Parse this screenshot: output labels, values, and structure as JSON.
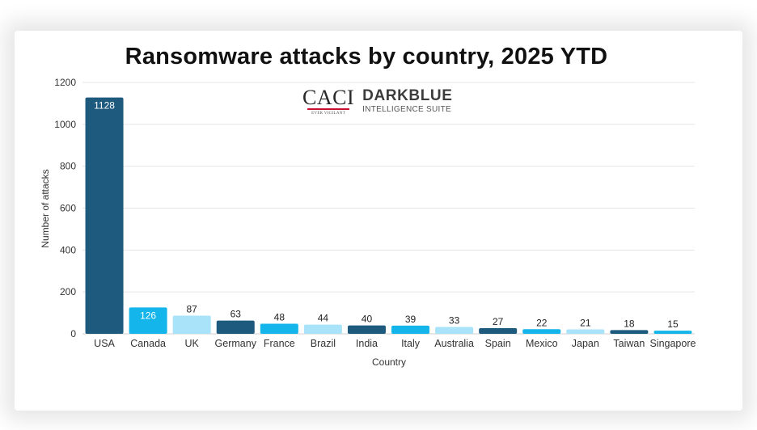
{
  "chart_data": {
    "type": "bar",
    "title": "Ransomware attacks by country, 2025 YTD",
    "xlabel": "Country",
    "ylabel": "Number of attacks",
    "ylim": [
      0,
      1200
    ],
    "yticks": [
      0,
      200,
      400,
      600,
      800,
      1000,
      1200
    ],
    "grid": true,
    "categories": [
      "USA",
      "Canada",
      "UK",
      "Germany",
      "France",
      "Brazil",
      "India",
      "Italy",
      "Australia",
      "Spain",
      "Mexico",
      "Japan",
      "Taiwan",
      "Singapore"
    ],
    "values": [
      1128,
      126,
      87,
      63,
      48,
      44,
      40,
      39,
      33,
      27,
      22,
      21,
      18,
      15
    ],
    "colors": [
      "#1e5a7e",
      "#13b5ea",
      "#a9e3f9",
      "#1e5a7e",
      "#13b5ea",
      "#a9e3f9",
      "#1e5a7e",
      "#13b5ea",
      "#a9e3f9",
      "#1e5a7e",
      "#13b5ea",
      "#a9e3f9",
      "#1e5a7e",
      "#13b5ea"
    ]
  },
  "logo": {
    "caci": "CACI",
    "caci_tagline": "EVER VIGILANT",
    "brand": "DARKBLUE",
    "brand_sub": "INTELLIGENCE SUITE"
  }
}
